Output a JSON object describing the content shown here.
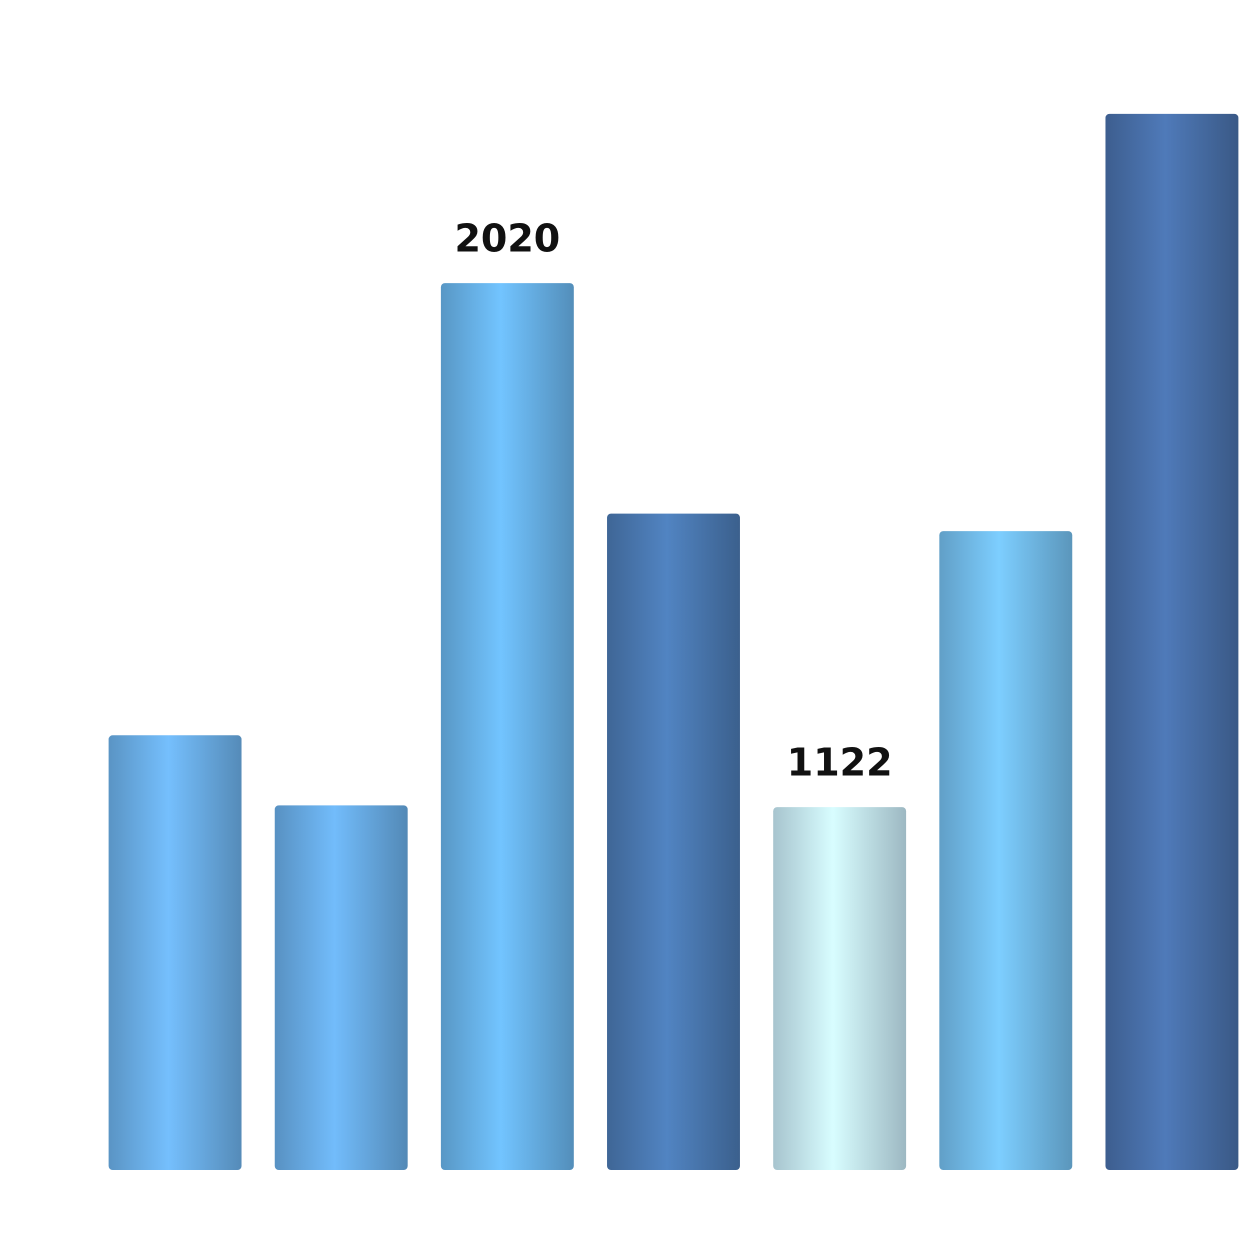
{
  "chart_data": {
    "type": "bar",
    "categories": [
      null,
      null,
      null,
      null,
      null,
      null,
      null
    ],
    "values": [
      1245,
      1125,
      2020,
      1625,
      1122,
      1595,
      2310
    ],
    "value_labels": [
      null,
      null,
      "2020",
      null,
      "1122",
      null,
      null
    ],
    "colors": [
      "#6aaee6",
      "#68abe4",
      "#68b2e8",
      "#4a78b0",
      "#c4e6f2",
      "#72bbea",
      "#486fa8"
    ],
    "ylim": [
      500,
      2500
    ]
  }
}
